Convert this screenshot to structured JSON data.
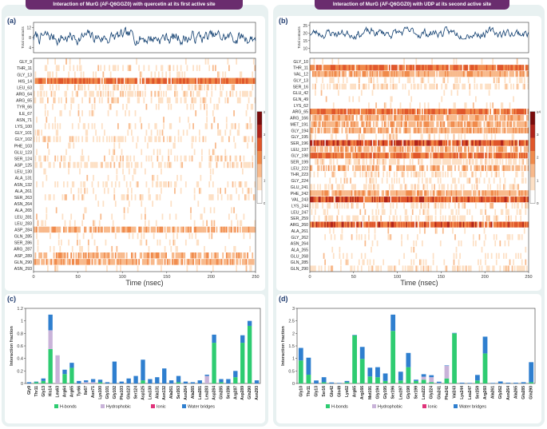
{
  "titles": {
    "left": "Interaction of MurG (AF-Q6GGZ0) with quercetin at its first active site",
    "right": "Interaction of MurG (AF-Q6GGZ0) with UDP at its second active site"
  },
  "panel_labels": {
    "a": "(a)",
    "b": "(b)",
    "c": "(c)",
    "d": "(d)"
  },
  "colors": {
    "hbond": "#2ecc71",
    "hydrophobic": "#c9b3d9",
    "ionic": "#e0337a",
    "water": "#2f7fcf",
    "contacts_line": "#0d3c6e",
    "title_bg": "#6a2c6e"
  },
  "chart_data": [
    {
      "id": "a_contacts",
      "type": "line",
      "ylabel": "Total contacts",
      "yticks": [
        4,
        8,
        12
      ],
      "ylim": [
        2,
        14
      ],
      "xlim": [
        0,
        250
      ],
      "mean": 8,
      "range": [
        5,
        12
      ]
    },
    {
      "id": "a_timeline",
      "type": "heatmap",
      "xlabel": "Time (nsec)",
      "xticks": [
        0,
        50,
        100,
        150,
        200,
        250
      ],
      "colorbar_label": "# of contacts",
      "colorbar_ticks": [
        "0",
        "1",
        "2",
        "3",
        "≥4"
      ],
      "residues": [
        "GLY_9",
        "THR_11",
        "GLY_13",
        "HIS_14",
        "LEU_63",
        "ARG_64",
        "ARG_65",
        "TYR_66",
        "ILE_67",
        "ASN_71",
        "LYS_100",
        "GLY_101",
        "GLY_102",
        "PHE_103",
        "GLU_123",
        "SER_124",
        "ASP_125",
        "LEU_130",
        "ALA_131",
        "ASN_132",
        "ALA_261",
        "SER_263",
        "ASN_264",
        "ALA_265",
        "LEU_281",
        "LEU_283",
        "ASP_284",
        "GLN_285",
        "SER_286",
        "ARG_287",
        "ASP_289",
        "GLN_290",
        "ASN_293"
      ],
      "density": [
        0.05,
        0.25,
        0.22,
        0.92,
        0.35,
        0.45,
        0.4,
        0.12,
        0.18,
        0.08,
        0.2,
        0.15,
        0.4,
        0.08,
        0.12,
        0.35,
        0.45,
        0.06,
        0.12,
        0.35,
        0.1,
        0.25,
        0.05,
        0.05,
        0.08,
        0.15,
        0.75,
        0.2,
        0.08,
        0.15,
        0.65,
        0.85,
        0.06
      ]
    },
    {
      "id": "c_fractions",
      "type": "bar",
      "ylabel": "Interaction fraction",
      "ylim": [
        0,
        1.2
      ],
      "yticks": [
        "0",
        "0.2",
        "0.4",
        "0.6",
        "0.8",
        "1",
        "1.2"
      ],
      "categories": [
        "Gly9",
        "Thr11",
        "Gly13",
        "His14",
        "Leu63",
        "Arg64",
        "Arg65",
        "Tyr66",
        "Ile67",
        "Asn71",
        "Lys100",
        "Gly101",
        "Gly102",
        "Phe103",
        "Glu123",
        "Ser124",
        "Asp125",
        "Leu130",
        "Ala131",
        "Asn132",
        "Ala261",
        "Ser263",
        "Asn264",
        "Ala265",
        "Leu281",
        "Leu283",
        "Asp284",
        "Gln285",
        "Ser286",
        "Arg287",
        "Asp289",
        "Gln290",
        "Asn293"
      ],
      "series": [
        {
          "name": "H-bonds",
          "values": [
            0,
            0.02,
            0.04,
            0.55,
            0,
            0.15,
            0.25,
            0,
            0,
            0,
            0.02,
            0,
            0,
            0,
            0,
            0,
            0.05,
            0,
            0,
            0,
            0,
            0.02,
            0,
            0,
            0,
            0,
            0.65,
            0.02,
            0,
            0.1,
            0.65,
            0.92,
            0
          ]
        },
        {
          "name": "Hydrophobic",
          "values": [
            0,
            0,
            0,
            0.3,
            0.45,
            0,
            0,
            0,
            0.02,
            0.02,
            0,
            0,
            0,
            0,
            0,
            0,
            0,
            0,
            0,
            0,
            0,
            0,
            0,
            0,
            0,
            0.12,
            0,
            0,
            0,
            0,
            0,
            0,
            0
          ]
        },
        {
          "name": "Ionic",
          "values": [
            0,
            0,
            0,
            0,
            0,
            0,
            0,
            0,
            0,
            0,
            0,
            0,
            0,
            0,
            0,
            0,
            0,
            0,
            0,
            0,
            0,
            0,
            0,
            0,
            0,
            0,
            0,
            0,
            0,
            0,
            0,
            0,
            0
          ]
        },
        {
          "name": "Water bridges",
          "values": [
            0.02,
            0.01,
            0.04,
            0.25,
            0,
            0.07,
            0.08,
            0.04,
            0.03,
            0.05,
            0.04,
            0.02,
            0.35,
            0.03,
            0.08,
            0.12,
            0.33,
            0.07,
            0.1,
            0.24,
            0.05,
            0.1,
            0.03,
            0.02,
            0.05,
            0.02,
            0.13,
            0.05,
            0.07,
            0.1,
            0.12,
            0.08,
            0.05
          ]
        }
      ],
      "legend": [
        "H-bonds",
        "Hydrophobic",
        "Ionic",
        "Water bridges"
      ]
    },
    {
      "id": "b_contacts",
      "type": "line",
      "ylabel": "Total contacts",
      "yticks": [
        10,
        15,
        20,
        25
      ],
      "ylim": [
        7,
        27
      ],
      "xlim": [
        0,
        250
      ],
      "mean": 20,
      "range": [
        16,
        24
      ]
    },
    {
      "id": "b_timeline",
      "type": "heatmap",
      "xlabel": "Time (nsec)",
      "xticks": [
        0,
        50,
        100,
        150,
        200,
        250
      ],
      "colorbar_label": "# of contacts",
      "colorbar_ticks": [
        "0",
        "1",
        "2",
        "3",
        "≥4"
      ],
      "residues": [
        "GLY_10",
        "THR_11",
        "VAL_12",
        "GLY_13",
        "SER_16",
        "GLU_42",
        "GLN_49",
        "LYS_62",
        "ARG_65",
        "ARG_166",
        "MET_191",
        "GLY_194",
        "GLY_195",
        "SER_196",
        "LEU_197",
        "GLY_198",
        "SER_199",
        "LEU_222",
        "THR_223",
        "GLY_224",
        "GLU_241",
        "PHE_242",
        "VAL_243",
        "LYS_244",
        "LEU_247",
        "SER_259",
        "ARG_260",
        "ALA_261",
        "GLY_262",
        "ASN_264",
        "ALA_265",
        "GLU_268",
        "GLN_285",
        "GLN_290"
      ],
      "density": [
        0.12,
        0.92,
        0.9,
        0.3,
        0.5,
        0.05,
        0.05,
        0.1,
        0.95,
        0.9,
        0.8,
        0.9,
        0.2,
        0.98,
        0.7,
        0.92,
        0.6,
        0.7,
        0.35,
        0.3,
        0.4,
        0.9,
        0.98,
        0.3,
        0.25,
        0.45,
        0.98,
        0.1,
        0.2,
        0.08,
        0.06,
        0.12,
        0.15,
        0.4
      ]
    },
    {
      "id": "d_fractions",
      "type": "bar",
      "ylabel": "Interaction fraction",
      "ylim": [
        0,
        3
      ],
      "yticks": [
        "0",
        "0.5",
        "1",
        "1.5",
        "2",
        "2.5",
        "3"
      ],
      "categories": [
        "Gly10",
        "Thr11",
        "Gly13",
        "Ser16",
        "Glu42",
        "Gln49",
        "Lys62",
        "Arg65",
        "Arg166",
        "Met191",
        "Gly194",
        "Gly195",
        "Ser196",
        "Leu197",
        "Gly198",
        "Ser199",
        "Leu222",
        "Gly224",
        "Glu241",
        "Phe242",
        "Val243",
        "Lys244",
        "Leu247",
        "Ser259",
        "Arg260",
        "Ala261",
        "Gly262",
        "Asn264",
        "Ala265",
        "Glu285",
        "Gln290"
      ],
      "series": [
        {
          "name": "H-bonds",
          "values": [
            0.92,
            0.35,
            0,
            0.05,
            0,
            0,
            0.05,
            1.92,
            0.98,
            0.28,
            0.25,
            0.1,
            2.1,
            0.12,
            0.65,
            0.1,
            0.15,
            0.05,
            0,
            0.2,
            2.0,
            0,
            0,
            0.12,
            1.2,
            0,
            0,
            0,
            0,
            0,
            0.05
          ]
        },
        {
          "name": "Hydrophobic",
          "values": [
            0,
            0,
            0,
            0,
            0,
            0,
            0,
            0,
            0,
            0,
            0,
            0,
            0,
            0,
            0,
            0,
            0.12,
            0.2,
            0.02,
            0.5,
            0,
            0,
            0,
            0,
            0,
            0,
            0,
            0,
            0,
            0,
            0
          ]
        },
        {
          "name": "Ionic",
          "values": [
            0,
            0,
            0,
            0,
            0,
            0,
            0,
            0,
            0,
            0,
            0,
            0,
            0,
            0,
            0,
            0,
            0,
            0,
            0,
            0,
            0,
            0,
            0,
            0,
            0,
            0,
            0,
            0,
            0,
            0,
            0
          ]
        },
        {
          "name": "Water bridges",
          "values": [
            0.5,
            0.68,
            0.12,
            0.2,
            0.04,
            0.02,
            0.05,
            0.02,
            0.48,
            0.35,
            0.4,
            0.3,
            0.65,
            0.35,
            0.57,
            0.05,
            0.1,
            0.08,
            0.05,
            0.02,
            0.02,
            0.03,
            0.02,
            0.22,
            0.67,
            0.02,
            0.08,
            0.03,
            0.03,
            0.05,
            0.8
          ]
        }
      ],
      "legend": [
        "H-bonds",
        "Hydrophobic",
        "Ionic",
        "Water bridges"
      ]
    }
  ]
}
